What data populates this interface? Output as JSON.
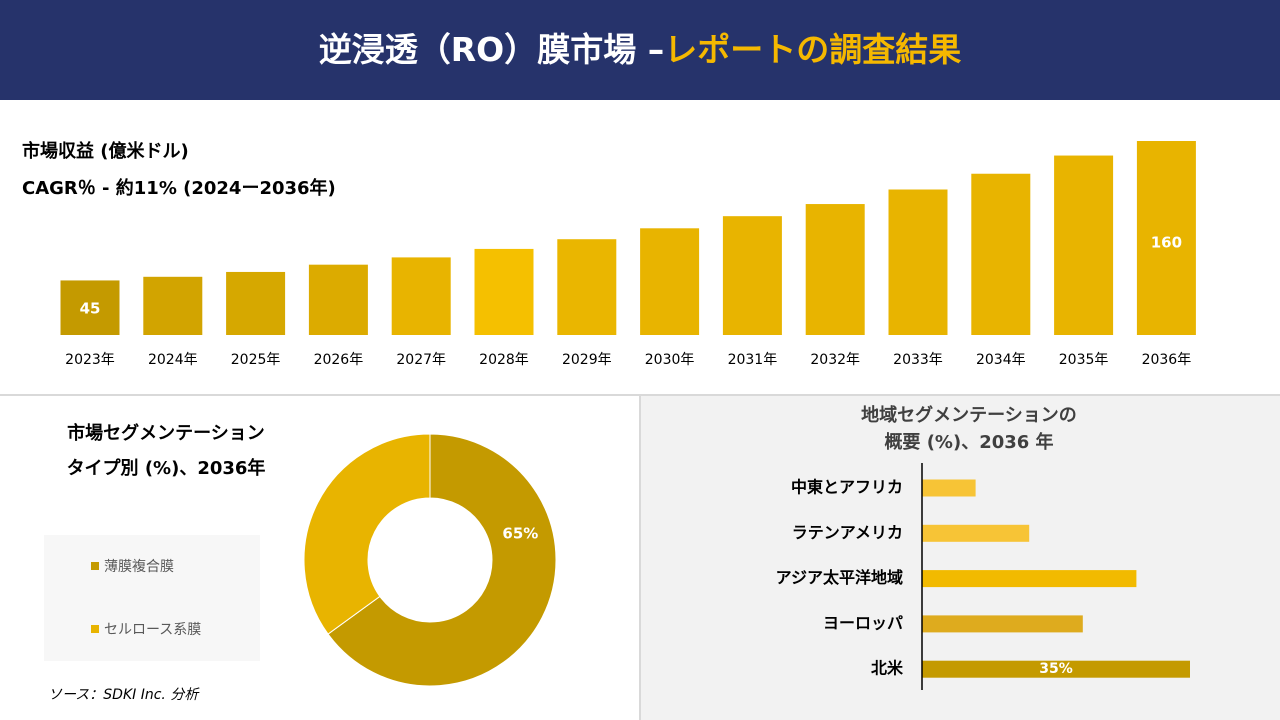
{
  "header": {
    "title": "逆浸透（RO）膜市場 –",
    "title_accent": "レポートの調査結果"
  },
  "source": "ソース：SDKI Inc. 分析",
  "chart_data": [
    {
      "type": "bar",
      "title": "市場収益 (億米ドル)",
      "subtitle": "CAGR％ - 約11% (2024ー2036年)",
      "categories": [
        "2023年",
        "2024年",
        "2025年",
        "2026年",
        "2027年",
        "2028年",
        "2029年",
        "2030年",
        "2031年",
        "2032年",
        "2033年",
        "2034年",
        "2035年",
        "2036年"
      ],
      "values": [
        45,
        48,
        52,
        58,
        64,
        71,
        79,
        88,
        98,
        108,
        120,
        133,
        148,
        160
      ],
      "value_labels": [
        "45",
        null,
        null,
        null,
        null,
        null,
        null,
        null,
        null,
        null,
        null,
        null,
        null,
        "160"
      ],
      "colors": [
        "#c49a00",
        "#d2a400",
        "#d6a800",
        "#dcab00",
        "#e8b400",
        "#f5c000",
        "#eab600",
        "#e8b400",
        "#e8b400",
        "#e8b400",
        "#e8b400",
        "#e8b400",
        "#e8b400",
        "#e8b400"
      ]
    },
    {
      "type": "donut",
      "title": [
        "市場セグメンテーション",
        "タイプ別 (%)、2036年"
      ],
      "categories": [
        "薄膜複合膜",
        "セルロース系膜"
      ],
      "values": [
        65,
        35
      ],
      "value_labels": [
        "65%",
        null
      ],
      "colors": [
        "#c49a00",
        "#e8b400"
      ]
    },
    {
      "type": "barh",
      "title": [
        "地域セグメンテーションの",
        "概要 (%)、2036 年"
      ],
      "categories": [
        "中東とアフリカ",
        "ラテンアメリカ",
        "アジア太平洋地域",
        "ヨーロッパ",
        "北米"
      ],
      "values": [
        7,
        14,
        28,
        21,
        35
      ],
      "value_labels": [
        null,
        null,
        null,
        null,
        "35%"
      ],
      "colors": [
        "#f7c436",
        "#f7c436",
        "#f2ba00",
        "#deab1e",
        "#c49a00"
      ]
    }
  ]
}
